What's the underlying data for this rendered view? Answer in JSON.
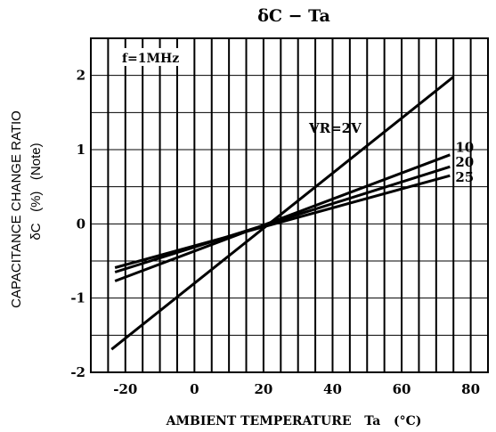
{
  "chart_data": {
    "type": "line",
    "title": "δC − Ta",
    "xlabel": "AMBIENT TEMPERATURE   Ta   (°C)",
    "ylabel_line1": "CAPACITANCE CHANGE RATIO",
    "ylabel_line2": "δC   (%)   (Note)",
    "annotation": "f=1MHz",
    "xlim": [
      -30,
      85
    ],
    "ylim": [
      -2,
      2.5
    ],
    "x_ticks": [
      -20,
      0,
      20,
      40,
      60,
      80
    ],
    "x_tick_labels": [
      "-20",
      "0",
      "20",
      "40",
      "60",
      "80"
    ],
    "y_ticks": [
      -2,
      -1,
      0,
      1,
      2
    ],
    "y_tick_labels": [
      "-2",
      "-1",
      "0",
      "1",
      "2"
    ],
    "grid": true,
    "series": [
      {
        "name": "VR=2V",
        "x": [
          -24,
          75
        ],
        "y": [
          -1.69,
          1.98
        ]
      },
      {
        "name": "10",
        "x": [
          -23,
          74
        ],
        "y": [
          -0.77,
          0.93
        ]
      },
      {
        "name": "20",
        "x": [
          -23,
          74
        ],
        "y": [
          -0.65,
          0.77
        ]
      },
      {
        "name": "25",
        "x": [
          -23,
          74
        ],
        "y": [
          -0.59,
          0.65
        ]
      }
    ]
  }
}
